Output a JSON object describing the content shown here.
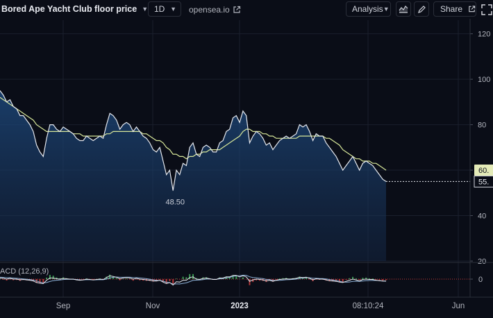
{
  "toolbar": {
    "title": "Bored Ape Yacht Club floor price",
    "interval": "1D",
    "source_link": "opensea.io",
    "analysis": "Analysis",
    "share": "Share"
  },
  "chart_data": {
    "type": "line",
    "title": "Bored Ape Yacht Club floor price",
    "y_axis_ticks": [
      "120",
      "100",
      "80",
      "60",
      "40",
      "20"
    ],
    "ylim": [
      20,
      126
    ],
    "x_axis_ticks": [
      "Sep",
      "Nov",
      "2023",
      "Jun"
    ],
    "crosshair_time": "08:10:24",
    "grid": true,
    "series": [
      {
        "values": [
          95,
          93,
          90,
          91,
          88,
          87,
          84,
          84,
          82,
          80,
          77,
          71,
          68,
          66,
          74,
          80,
          80,
          78,
          77,
          79,
          78,
          77,
          76,
          74,
          73,
          73,
          75,
          74,
          73,
          74,
          75,
          74,
          80,
          85,
          84,
          82,
          78,
          80,
          81,
          80,
          77,
          79,
          77,
          75,
          74,
          72,
          69,
          68,
          70,
          64,
          58,
          60,
          51,
          60,
          58,
          63,
          62,
          70,
          72,
          67,
          66,
          70,
          71,
          70,
          68,
          68,
          72,
          73,
          77,
          78,
          83,
          84,
          81,
          86,
          84,
          72,
          75,
          77,
          76,
          74,
          71,
          72,
          69,
          71,
          73,
          74,
          75,
          74,
          75,
          76,
          80,
          79,
          80,
          77,
          73,
          76,
          75,
          75,
          72,
          70,
          68,
          66,
          63,
          60,
          62,
          64,
          66,
          63,
          60,
          63,
          64,
          63,
          62,
          60,
          58,
          56,
          55
        ]
      },
      {
        "values": [
          92,
          91,
          90,
          89,
          88,
          87,
          86,
          85,
          84,
          83,
          82,
          80,
          79,
          78,
          77,
          77,
          77,
          77,
          77,
          77,
          77,
          77,
          76,
          76,
          76,
          75,
          75,
          75,
          75,
          75,
          75,
          75,
          76,
          76,
          77,
          77,
          77,
          77,
          77,
          77,
          77,
          77,
          77,
          76,
          76,
          75,
          74,
          73,
          73,
          72,
          70,
          69,
          67,
          67,
          66,
          66,
          65,
          66,
          66,
          67,
          67,
          68,
          68,
          69,
          69,
          69,
          69,
          70,
          71,
          72,
          73,
          74,
          75,
          77,
          78,
          78,
          77,
          77,
          77,
          76,
          76,
          75,
          75,
          74,
          74,
          74,
          74,
          74,
          74,
          74,
          75,
          75,
          75,
          75,
          75,
          75,
          75,
          75,
          74,
          74,
          73,
          72,
          71,
          69,
          68,
          67,
          66,
          65,
          65,
          64,
          64,
          64,
          63,
          63,
          62,
          61,
          60
        ]
      }
    ],
    "price_labels": {
      "moving_average": "60.",
      "last_price": "55."
    },
    "annotation": "48.50",
    "indicator": {
      "label": "ACD (12,26,9)",
      "y_axis_ticks": [
        "0"
      ]
    }
  }
}
